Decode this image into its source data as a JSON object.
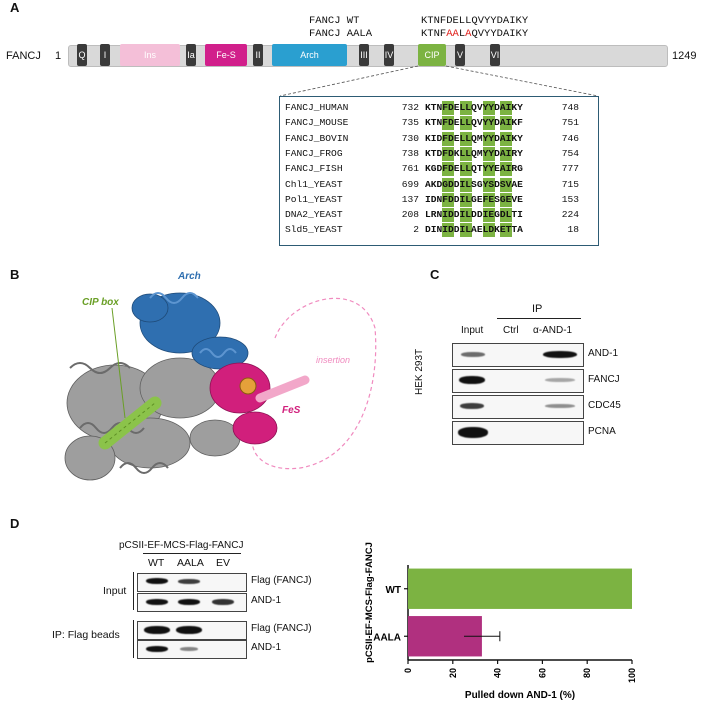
{
  "panelA": {
    "letter": "A",
    "protein": "FANCJ",
    "start": "1",
    "end": "1249",
    "wt_label": "FANCJ WT",
    "wt_seq": "KTNFDELLQVYYDAIKY",
    "aala_label": "FANCJ AALA",
    "aala_seq_pre": "KTNF",
    "aala_seq_mut1": "AA",
    "aala_seq_mid": "L",
    "aala_seq_mut2": "A",
    "aala_seq_post": "QVYYDAIKY",
    "domains": [
      "Q",
      "I",
      "Ins",
      "Ia",
      "Fe-S",
      "II",
      "Arch",
      "III",
      "IV",
      "CIP",
      "V",
      "VI"
    ],
    "alignment": [
      {
        "name": "FANCJ_HUMAN",
        "s": "732",
        "seq": "KTNFDELLQVYYDAIKY",
        "e": "748"
      },
      {
        "name": "FANCJ_MOUSE",
        "s": "735",
        "seq": "KTNFDELLQVYYDAIKF",
        "e": "751"
      },
      {
        "name": "FANCJ_BOVIN",
        "s": "730",
        "seq": "KIDFDELLQMYYDAIKY",
        "e": "746"
      },
      {
        "name": "FANCJ_FROG",
        "s": "738",
        "seq": "KTDFDKLLQMYYDAIRY",
        "e": "754"
      },
      {
        "name": "FANCJ_FISH",
        "s": "761",
        "seq": "KGDFDELLQTYYEAIRG",
        "e": "777"
      },
      {
        "name": "Chl1_YEAST",
        "s": "699",
        "seq": "AKDGDDILSGYSDSVAE",
        "e": "715"
      },
      {
        "name": "Pol1_YEAST",
        "s": "137",
        "seq": "IDNFDDILGEFESGEVE",
        "e": "153"
      },
      {
        "name": "DNA2_YEAST",
        "s": "208",
        "seq": "LRNIDDILDDIEGDLTI",
        "e": "224"
      },
      {
        "name": "Sld5_YEAST",
        "s": "2",
        "seq": "DINIDDILAELDKETTA",
        "e": "18"
      }
    ]
  },
  "panelB": {
    "letter": "B",
    "labels": {
      "arch": "Arch",
      "cip": "CIP box",
      "insertion": "insertion",
      "fes": "FeS"
    }
  },
  "panelC": {
    "letter": "C",
    "cell_line": "HEK 293T",
    "ip_header": "IP",
    "lanes": [
      "Input",
      "Ctrl",
      "α-AND-1"
    ],
    "blots": [
      "AND-1",
      "FANCJ",
      "CDC45",
      "PCNA"
    ]
  },
  "panelD": {
    "letter": "D",
    "construct": "pCSII-EF-MCS-Flag-FANCJ",
    "lanes": [
      "WT",
      "AALA",
      "EV"
    ],
    "input_label": "Input",
    "ip_label": "IP: Flag beads",
    "blot_labels": [
      "Flag (FANCJ)",
      "AND-1",
      "Flag (FANCJ)",
      "AND-1"
    ]
  },
  "chart_data": {
    "type": "bar",
    "orientation": "horizontal",
    "categories": [
      "WT",
      "AALA"
    ],
    "values": [
      100,
      33
    ],
    "errors": [
      0,
      8
    ],
    "colors": [
      "#7cb342",
      "#b0307f"
    ],
    "xlabel": "Pulled down AND-1  (%)",
    "ylabel": "pCSII-EF-MCS-Flag-FANCJ",
    "xlim": [
      0,
      100
    ],
    "xticks": [
      "0",
      "20",
      "40",
      "60",
      "80",
      "100"
    ]
  }
}
